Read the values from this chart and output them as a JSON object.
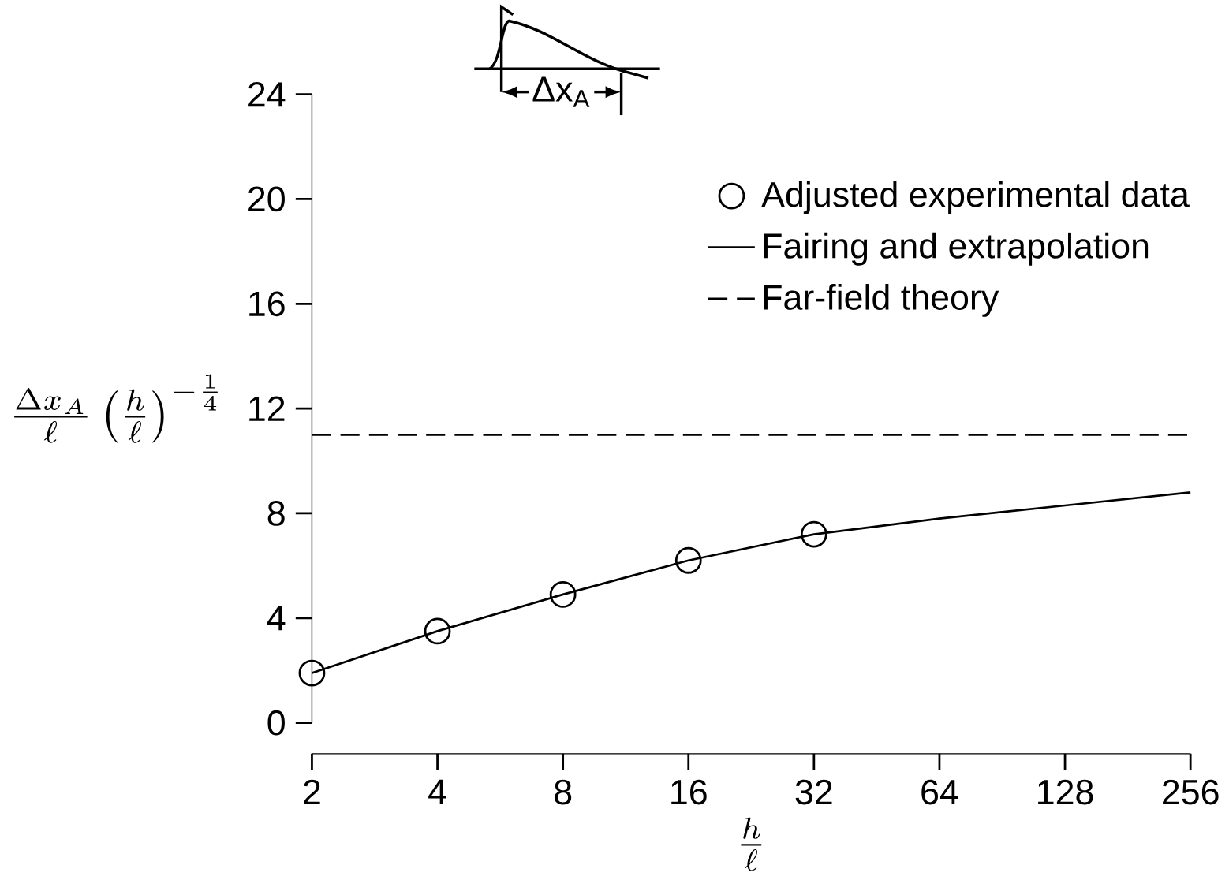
{
  "chart_data": {
    "type": "line",
    "xlabel": "\\frac{h}{\\ell}",
    "ylabel": "\\frac{\\Delta x_A}{\\ell}\\left(\\frac{h}{\\ell}\\right)^{-\\frac{1}{4}}",
    "annotations": [
      "Δx$_{A}$"
    ],
    "series": [
      {
        "name": "Adjusted experimental data",
        "type": "scatter",
        "marker": "circle",
        "color": "#000000",
        "x": [
          2,
          4,
          8,
          16,
          32
        ],
        "values": [
          1.9,
          3.5,
          4.9,
          6.2,
          7.2
        ]
      },
      {
        "name": "Fairing and extrapolation",
        "line_style": "solid",
        "color": "#000000",
        "x": [
          2,
          4,
          8,
          16,
          32,
          64,
          128,
          256
        ],
        "values": [
          1.9,
          3.5,
          4.9,
          6.2,
          7.2,
          7.8,
          8.3,
          8.8
        ]
      },
      {
        "name": "Far-field theory",
        "line_style": "dashed",
        "color": "#000000",
        "x": [
          2,
          256
        ],
        "values": [
          11.0,
          11.0
        ]
      }
    ],
    "xlim": [
      2,
      256
    ],
    "ylim": [
      0,
      24
    ],
    "xticks": [
      2,
      4,
      8,
      16,
      32,
      64,
      128,
      256
    ],
    "yticks": [
      0,
      4,
      8,
      12,
      16,
      20,
      24
    ],
    "log": "x",
    "legend": "top right"
  }
}
